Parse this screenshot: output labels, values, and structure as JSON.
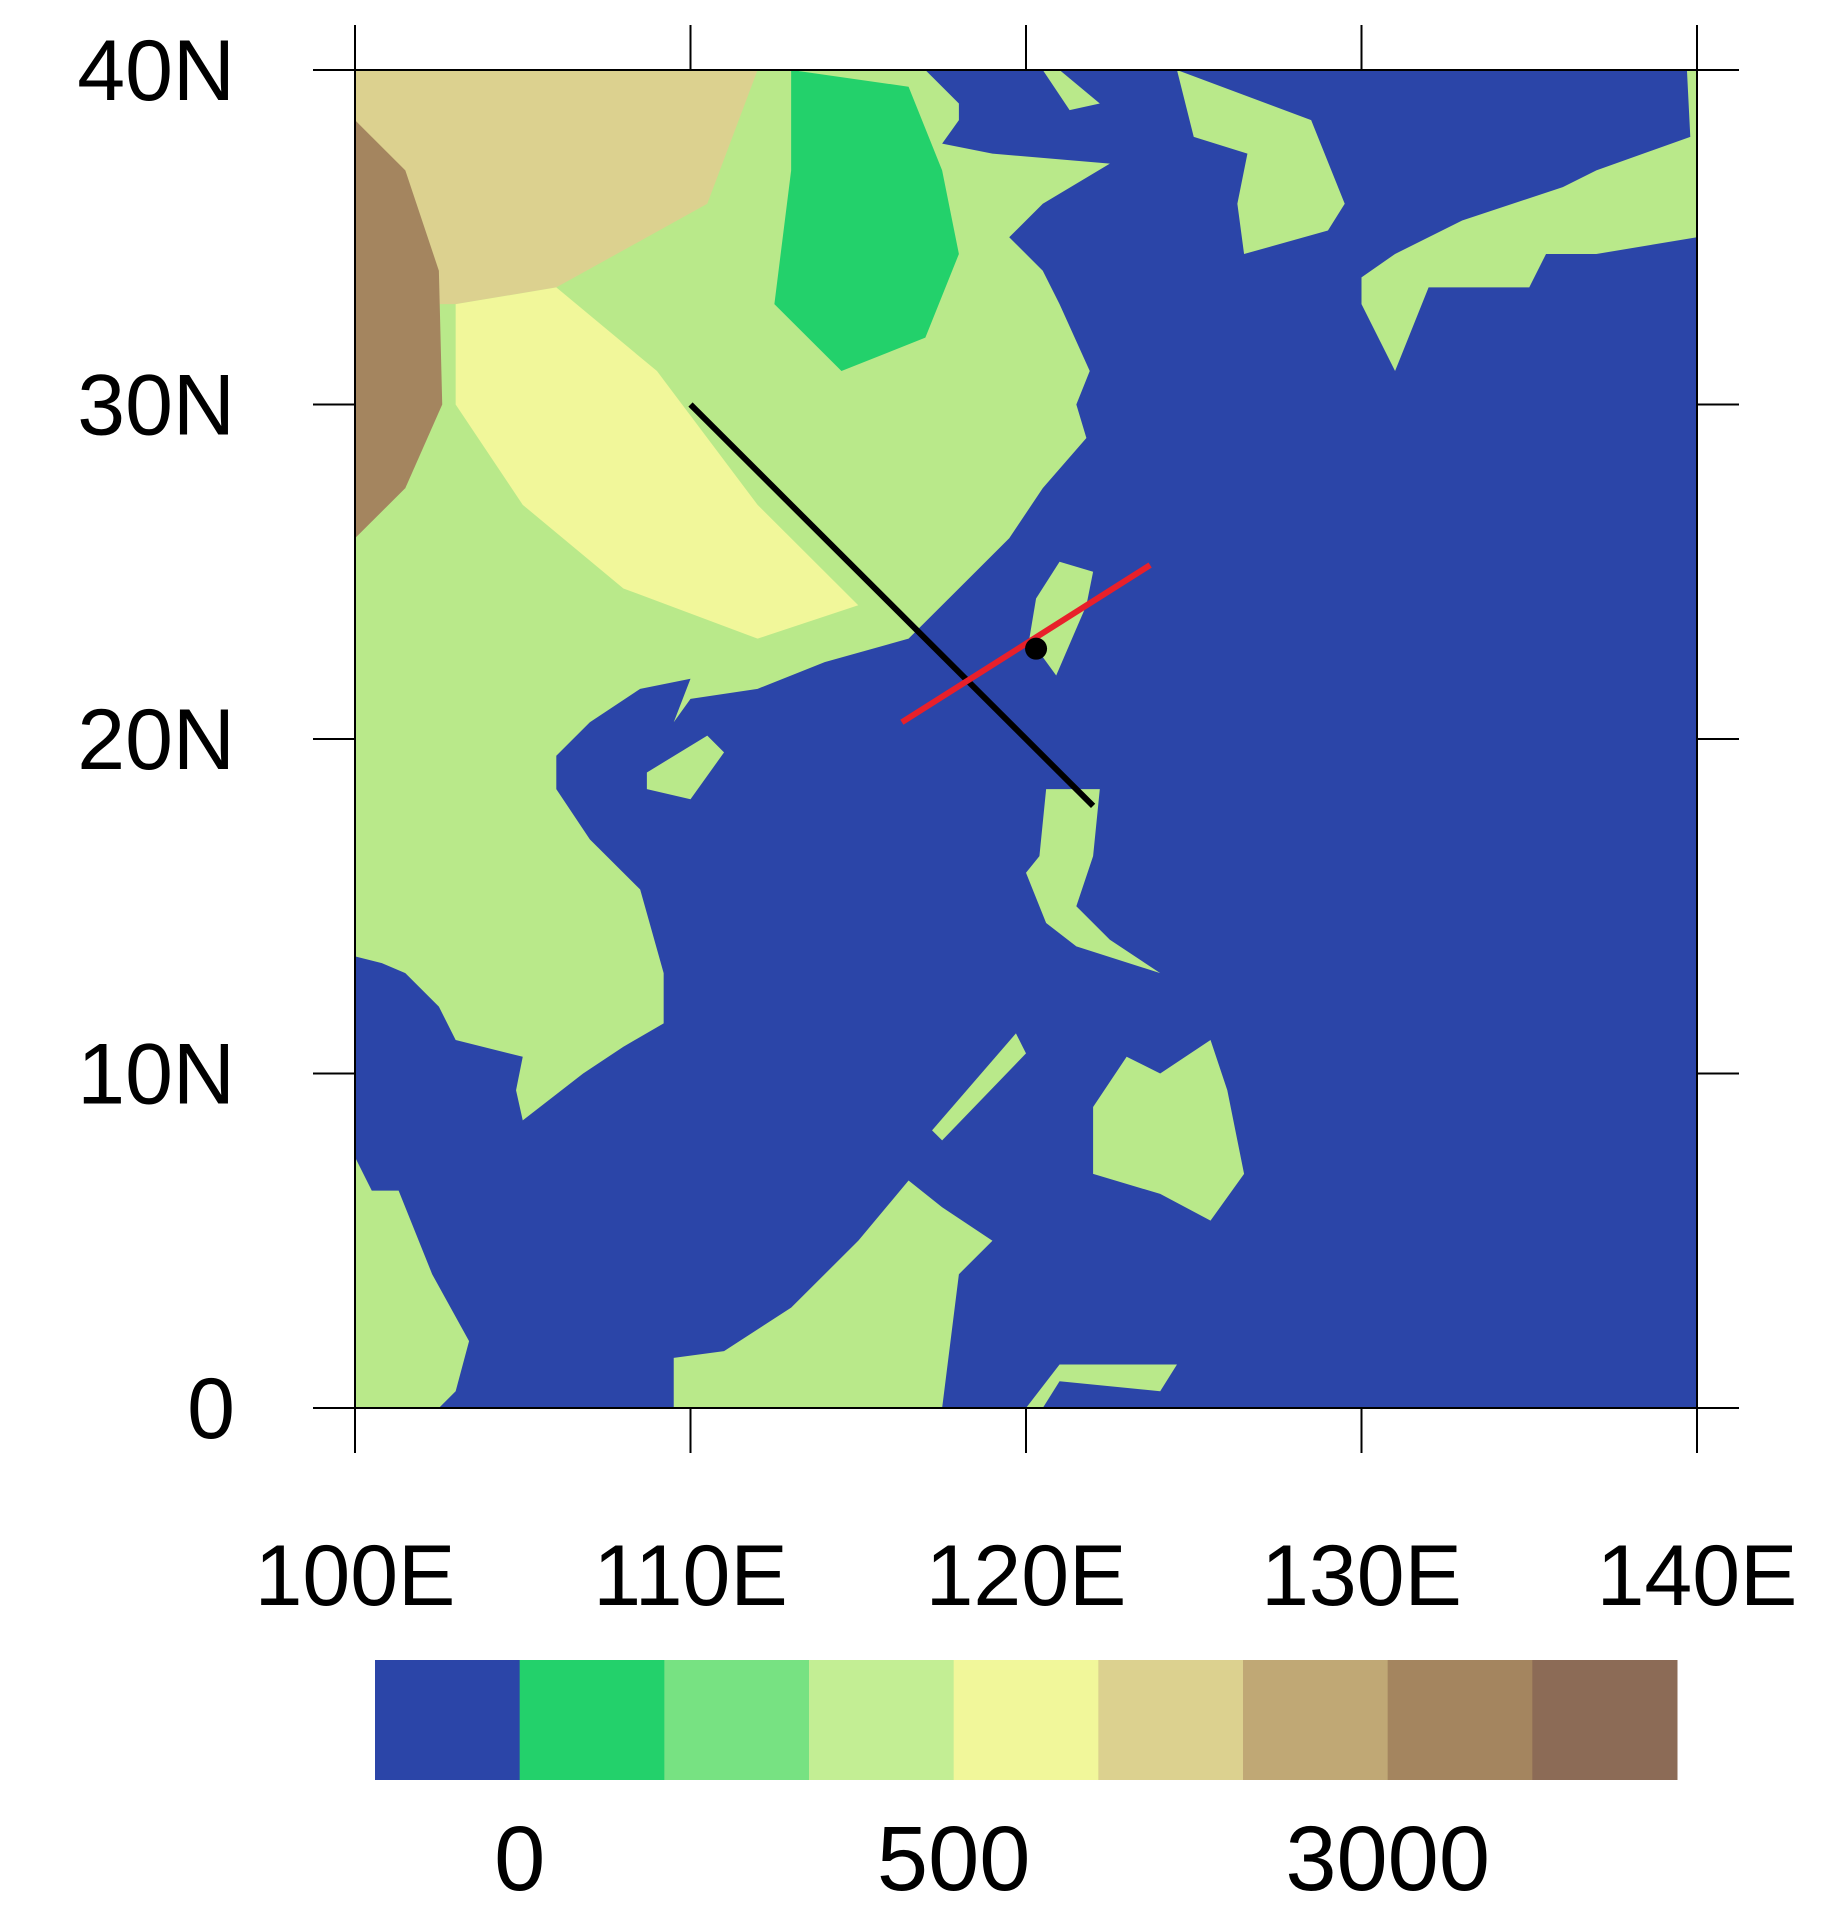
{
  "chart_data": {
    "type": "map",
    "xlim": [
      100,
      140
    ],
    "ylim": [
      0,
      40
    ],
    "xticks": [
      {
        "value": 100,
        "label": "100E"
      },
      {
        "value": 110,
        "label": "110E"
      },
      {
        "value": 120,
        "label": "120E"
      },
      {
        "value": 130,
        "label": "130E"
      },
      {
        "value": 140,
        "label": "140E"
      }
    ],
    "yticks": [
      0,
      {
        "value": 10,
        "label": "10N"
      },
      {
        "value": 20,
        "label": "20N"
      },
      {
        "value": 30,
        "label": "30N"
      },
      {
        "value": 40,
        "label": "40N"
      }
    ],
    "ocean_color": "#2b45a8",
    "lines": [
      {
        "color": "#000000",
        "x": [
          110,
          122
        ],
        "y": [
          30,
          18
        ]
      },
      {
        "color": "#e8202a",
        "x": [
          116.3,
          123.7
        ],
        "y": [
          20.5,
          25.2
        ]
      }
    ],
    "points": [
      {
        "color": "#000000",
        "x": [
          120.3
        ],
        "y": [
          22.7
        ]
      }
    ],
    "colorbar": {
      "colors": [
        "#2b45a8",
        "#23d16b",
        "#77e282",
        "#c3ee94",
        "#f1f79a",
        "#dcd18f",
        "#c0a875",
        "#a4855f",
        "#8c6b56"
      ],
      "levels": [
        0,
        null,
        null,
        500,
        null,
        null,
        3000,
        null
      ]
    }
  }
}
